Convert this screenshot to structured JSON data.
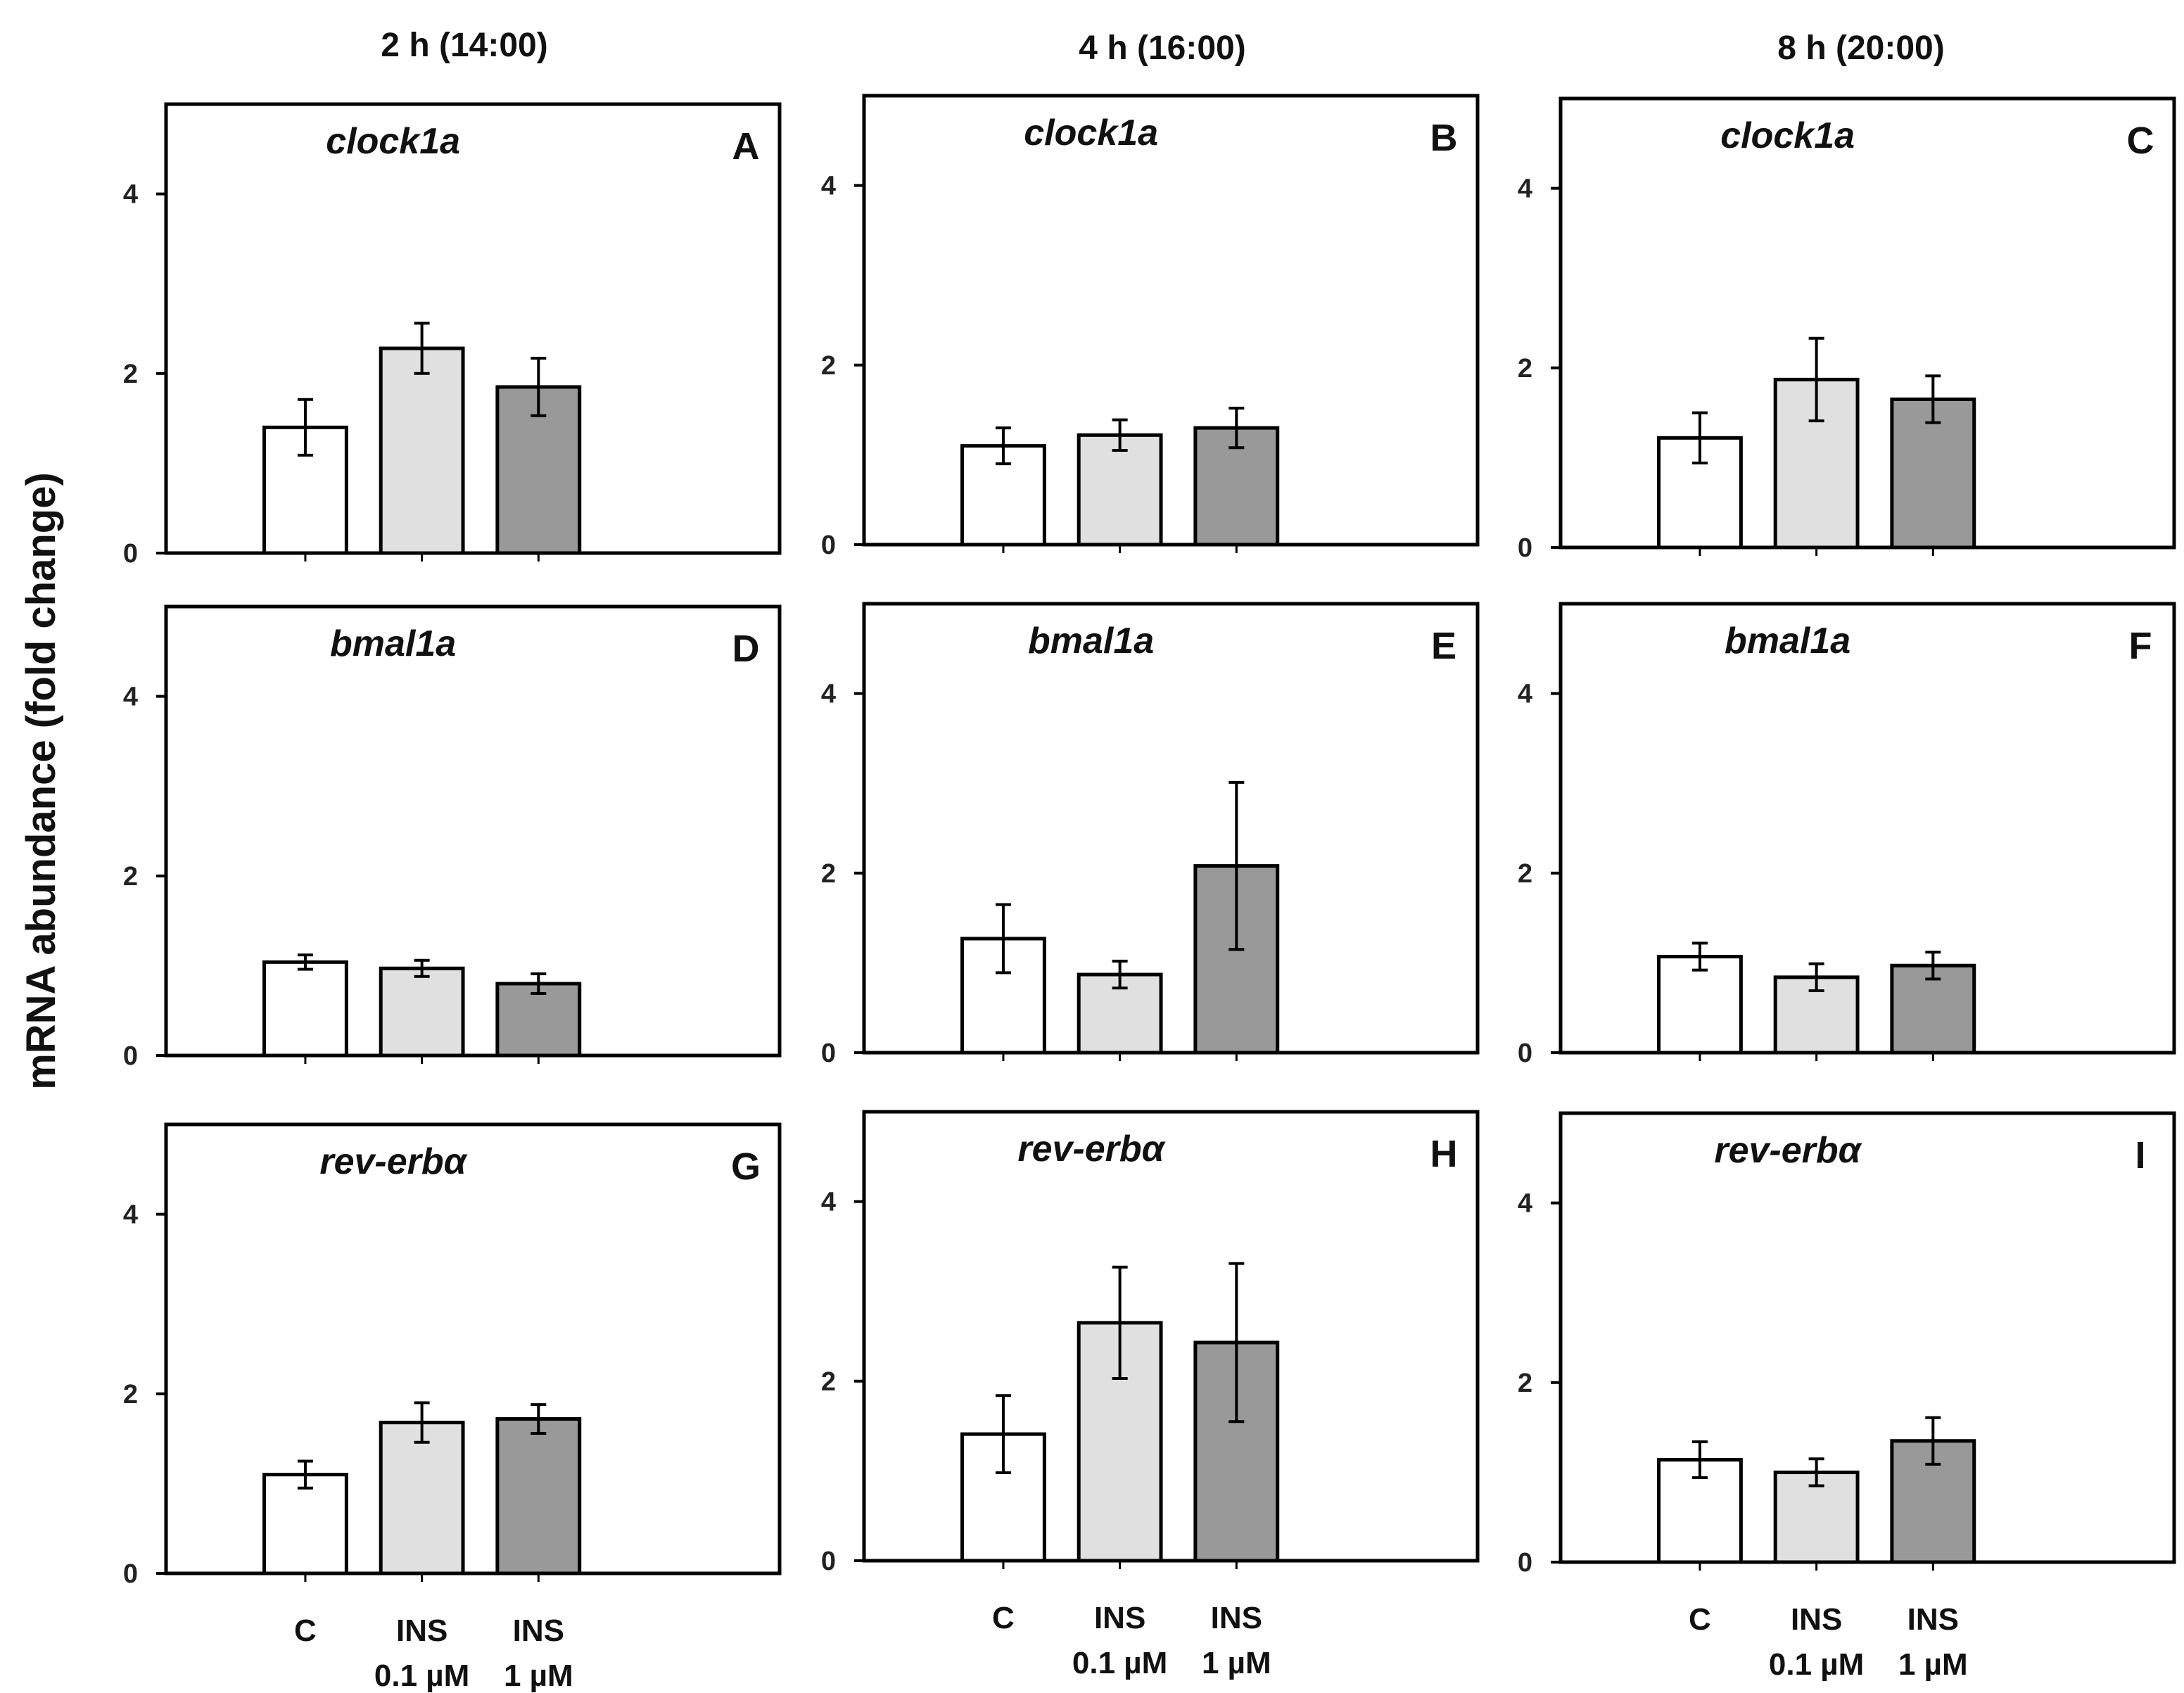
{
  "y_axis_title": "mRNA abundance (fold change)",
  "column_titles": [
    "2 h (14:00)",
    "4 h (16:00)",
    "8 h (20:00)"
  ],
  "category_labels": [
    [
      "C"
    ],
    [
      "INS",
      "0.1 µM"
    ],
    [
      "INS",
      "1 µM"
    ]
  ],
  "colors": {
    "C": "#ffffff",
    "INS 0.1 µM": "#e0e0e0",
    "INS 1 µM": "#999999"
  },
  "chart_data": [
    {
      "type": "bar",
      "panel": "A",
      "gene": "clock1a",
      "time": "2 h (14:00)",
      "categories": [
        "C",
        "INS 0.1 µM",
        "INS 1 µM"
      ],
      "values": [
        1.4,
        2.28,
        1.85
      ],
      "errors": [
        0.31,
        0.28,
        0.32
      ],
      "ylim": [
        0,
        5
      ],
      "yticks": [
        0,
        2,
        4
      ]
    },
    {
      "type": "bar",
      "panel": "B",
      "gene": "clock1a",
      "time": "4 h (16:00)",
      "categories": [
        "C",
        "INS 0.1 µM",
        "INS 1 µM"
      ],
      "values": [
        1.1,
        1.22,
        1.3
      ],
      "errors": [
        0.2,
        0.17,
        0.22
      ],
      "ylim": [
        0,
        5
      ],
      "yticks": [
        0,
        2,
        4
      ]
    },
    {
      "type": "bar",
      "panel": "C",
      "gene": "clock1a",
      "time": "8 h (20:00)",
      "categories": [
        "C",
        "INS 0.1 µM",
        "INS 1 µM"
      ],
      "values": [
        1.22,
        1.87,
        1.65
      ],
      "errors": [
        0.28,
        0.46,
        0.26
      ],
      "ylim": [
        0,
        5
      ],
      "yticks": [
        0,
        2,
        4
      ]
    },
    {
      "type": "bar",
      "panel": "D",
      "gene": "bmal1a",
      "time": "2 h (14:00)",
      "categories": [
        "C",
        "INS 0.1 µM",
        "INS 1 µM"
      ],
      "values": [
        1.04,
        0.97,
        0.8
      ],
      "errors": [
        0.08,
        0.09,
        0.11
      ],
      "ylim": [
        0,
        5
      ],
      "yticks": [
        0,
        2,
        4
      ]
    },
    {
      "type": "bar",
      "panel": "E",
      "gene": "bmal1a",
      "time": "4 h (16:00)",
      "categories": [
        "C",
        "INS 0.1 µM",
        "INS 1 µM"
      ],
      "values": [
        1.27,
        0.87,
        2.08
      ],
      "errors": [
        0.38,
        0.15,
        0.93
      ],
      "ylim": [
        0,
        5
      ],
      "yticks": [
        0,
        2,
        4
      ]
    },
    {
      "type": "bar",
      "panel": "F",
      "gene": "bmal1a",
      "time": "8 h (20:00)",
      "categories": [
        "C",
        "INS 0.1 µM",
        "INS 1 µM"
      ],
      "values": [
        1.07,
        0.84,
        0.97
      ],
      "errors": [
        0.15,
        0.15,
        0.15
      ],
      "ylim": [
        0,
        5
      ],
      "yticks": [
        0,
        2,
        4
      ]
    },
    {
      "type": "bar",
      "panel": "G",
      "gene": "rev-erbα",
      "time": "2 h (14:00)",
      "categories": [
        "C",
        "INS 0.1 µM",
        "INS 1 µM"
      ],
      "values": [
        1.1,
        1.68,
        1.72
      ],
      "errors": [
        0.15,
        0.22,
        0.16
      ],
      "ylim": [
        0,
        5
      ],
      "yticks": [
        0,
        2,
        4
      ]
    },
    {
      "type": "bar",
      "panel": "H",
      "gene": "rev-erbα",
      "time": "4 h (16:00)",
      "categories": [
        "C",
        "INS 0.1 µM",
        "INS 1 µM"
      ],
      "values": [
        1.41,
        2.65,
        2.43
      ],
      "errors": [
        0.43,
        0.62,
        0.88
      ],
      "ylim": [
        0,
        5
      ],
      "yticks": [
        0,
        2,
        4
      ]
    },
    {
      "type": "bar",
      "panel": "I",
      "gene": "rev-erbα",
      "time": "8 h (20:00)",
      "categories": [
        "C",
        "INS 0.1 µM",
        "INS 1 µM"
      ],
      "values": [
        1.14,
        1.0,
        1.35
      ],
      "errors": [
        0.2,
        0.15,
        0.26
      ],
      "ylim": [
        0,
        5
      ],
      "yticks": [
        0,
        2,
        4
      ]
    }
  ]
}
